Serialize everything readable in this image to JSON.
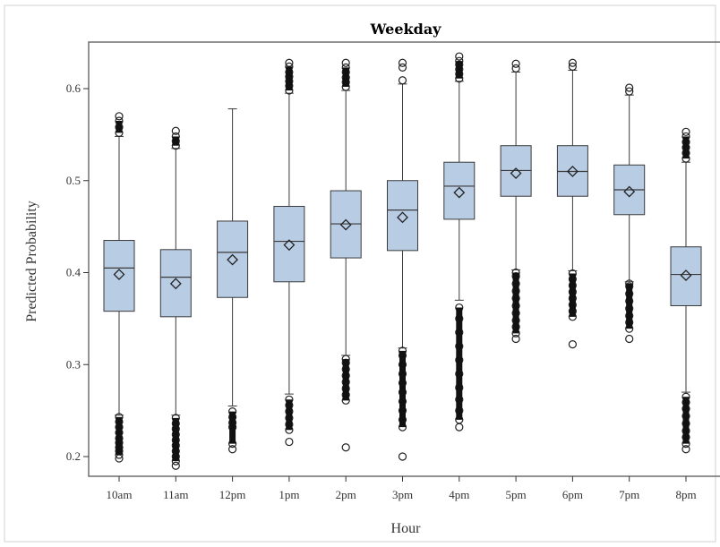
{
  "chart_data": {
    "type": "box",
    "title": "Weekday",
    "xlabel": "Hour",
    "ylabel": "Predicted Probability",
    "ylim": [
      0.185,
      0.645
    ],
    "yticks": [
      0.2,
      0.3,
      0.4,
      0.5,
      0.6
    ],
    "ytick_labels": [
      "0.2",
      "0.3",
      "0.4",
      "0.5",
      "0.6"
    ],
    "categories": [
      "10am",
      "11am",
      "12pm",
      "1pm",
      "2pm",
      "3pm",
      "4pm",
      "5pm",
      "6pm",
      "7pm",
      "8pm"
    ],
    "boxes": [
      {
        "category": "10am",
        "whisker_low": 0.245,
        "q1": 0.358,
        "median": 0.405,
        "q3": 0.435,
        "whisker_high": 0.548,
        "mean": 0.398,
        "outliers_low": [
          0.198,
          0.202,
          0.206,
          0.21,
          0.215,
          0.22,
          0.226,
          0.232,
          0.238,
          0.243
        ],
        "outliers_high": [
          0.552,
          0.558,
          0.565,
          0.57
        ]
      },
      {
        "category": "11am",
        "whisker_low": 0.245,
        "q1": 0.352,
        "median": 0.395,
        "q3": 0.425,
        "whisker_high": 0.535,
        "mean": 0.388,
        "outliers_low": [
          0.19,
          0.195,
          0.2,
          0.206,
          0.212,
          0.218,
          0.224,
          0.23,
          0.236,
          0.242
        ],
        "outliers_high": [
          0.538,
          0.543,
          0.548,
          0.554
        ]
      },
      {
        "category": "12pm",
        "whisker_low": 0.255,
        "q1": 0.373,
        "median": 0.422,
        "q3": 0.456,
        "whisker_high": 0.578,
        "mean": 0.414,
        "outliers_low": [
          0.208,
          0.214,
          0.232,
          0.237,
          0.243,
          0.249
        ],
        "outliers_high": []
      },
      {
        "category": "1pm",
        "whisker_low": 0.268,
        "q1": 0.39,
        "median": 0.434,
        "q3": 0.472,
        "whisker_high": 0.595,
        "mean": 0.43,
        "outliers_low": [
          0.216,
          0.229,
          0.235,
          0.242,
          0.249,
          0.256,
          0.262
        ],
        "outliers_high": [
          0.598,
          0.603,
          0.608,
          0.613,
          0.618,
          0.624,
          0.628
        ]
      },
      {
        "category": "2pm",
        "whisker_low": 0.31,
        "q1": 0.416,
        "median": 0.453,
        "q3": 0.489,
        "whisker_high": 0.598,
        "mean": 0.452,
        "outliers_low": [
          0.21,
          0.261,
          0.267,
          0.274,
          0.281,
          0.288,
          0.295,
          0.302,
          0.306
        ],
        "outliers_high": [
          0.602,
          0.607,
          0.612,
          0.618,
          0.623,
          0.628
        ]
      },
      {
        "category": "3pm",
        "whisker_low": 0.318,
        "q1": 0.424,
        "median": 0.468,
        "q3": 0.5,
        "whisker_high": 0.605,
        "mean": 0.46,
        "outliers_low": [
          0.2,
          0.232,
          0.24,
          0.25,
          0.26,
          0.27,
          0.28,
          0.29,
          0.3,
          0.31,
          0.315
        ],
        "outliers_high": [
          0.609,
          0.623,
          0.628
        ]
      },
      {
        "category": "4pm",
        "whisker_low": 0.37,
        "q1": 0.458,
        "median": 0.494,
        "q3": 0.52,
        "whisker_high": 0.608,
        "mean": 0.487,
        "outliers_low": [
          0.232,
          0.24,
          0.25,
          0.262,
          0.275,
          0.29,
          0.305,
          0.32,
          0.335,
          0.35,
          0.362
        ],
        "outliers_high": [
          0.611,
          0.616,
          0.621,
          0.626,
          0.63,
          0.635
        ]
      },
      {
        "category": "5pm",
        "whisker_low": 0.403,
        "q1": 0.483,
        "median": 0.511,
        "q3": 0.538,
        "whisker_high": 0.618,
        "mean": 0.508,
        "outliers_low": [
          0.328,
          0.334,
          0.341,
          0.348,
          0.356,
          0.364,
          0.372,
          0.38,
          0.388,
          0.396,
          0.4
        ],
        "outliers_high": [
          0.622,
          0.627
        ]
      },
      {
        "category": "6pm",
        "whisker_low": 0.402,
        "q1": 0.483,
        "median": 0.51,
        "q3": 0.538,
        "whisker_high": 0.62,
        "mean": 0.51,
        "outliers_low": [
          0.322,
          0.352,
          0.358,
          0.365,
          0.372,
          0.379,
          0.386,
          0.393,
          0.399
        ],
        "outliers_high": [
          0.624,
          0.628
        ]
      },
      {
        "category": "7pm",
        "whisker_low": 0.39,
        "q1": 0.463,
        "median": 0.49,
        "q3": 0.517,
        "whisker_high": 0.593,
        "mean": 0.488,
        "outliers_low": [
          0.328,
          0.339,
          0.346,
          0.353,
          0.361,
          0.369,
          0.377,
          0.385,
          0.388
        ],
        "outliers_high": [
          0.597,
          0.601
        ]
      },
      {
        "category": "8pm",
        "whisker_low": 0.27,
        "q1": 0.364,
        "median": 0.398,
        "q3": 0.428,
        "whisker_high": 0.52,
        "mean": 0.397,
        "outliers_low": [
          0.208,
          0.214,
          0.221,
          0.228,
          0.236,
          0.244,
          0.252,
          0.259,
          0.265
        ],
        "outliers_high": [
          0.524,
          0.53,
          0.536,
          0.542,
          0.548,
          0.553
        ]
      }
    ],
    "box_fill": "#b8cce4",
    "box_stroke": "#3a3a3a",
    "frame_color": "#6e6e6e",
    "grid": false,
    "legend": "none"
  }
}
